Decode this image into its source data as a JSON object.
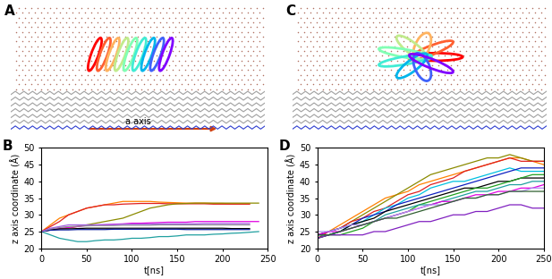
{
  "images": [
    {
      "label": "A",
      "annotation": "a axis"
    },
    {
      "label": "C"
    }
  ],
  "chart_data": [
    {
      "type": "line",
      "title": "B",
      "x_label": "t[ns]",
      "y_label": "z axis coordinate (Å)",
      "x": [
        0,
        10,
        20,
        30,
        40,
        50,
        60,
        70,
        80,
        90,
        100,
        110,
        120,
        130,
        140,
        150,
        160,
        170,
        180,
        190,
        200,
        210,
        220,
        230,
        240,
        250
      ],
      "xlim": [
        0,
        250
      ],
      "xticks": [
        0,
        50,
        100,
        150,
        200,
        250
      ],
      "ylim": [
        20,
        50
      ],
      "yticks": [
        20,
        25,
        30,
        35,
        40,
        45,
        50
      ],
      "grid": false,
      "series": [
        {
          "color": "#ff8000",
          "values": [
            25,
            27,
            29,
            30,
            31,
            32,
            32.5,
            33,
            33.5,
            34,
            34,
            34,
            34,
            33.8,
            33.7,
            33.6,
            33.5,
            33.5,
            33.5,
            33.4,
            33.4,
            33.3,
            33.3,
            33.3,
            null,
            null
          ]
        },
        {
          "color": "#e02020",
          "values": [
            25,
            26.5,
            28,
            30,
            31,
            32,
            32.5,
            33,
            33,
            33.2,
            33.3,
            33.4,
            33.4,
            33.4,
            33.3,
            33.3,
            33.3,
            33.3,
            33.3,
            33.2,
            33.2,
            33.2,
            33.2,
            33.2,
            null,
            null
          ]
        },
        {
          "color": "#8b8b00",
          "values": [
            25,
            25.5,
            25.8,
            26,
            26.5,
            27,
            27.5,
            28,
            28.5,
            29,
            30,
            31,
            32,
            32.5,
            33,
            33.3,
            33.4,
            33.5,
            33.5,
            33.5,
            33.5,
            33.5,
            33.5,
            33.5,
            33.5,
            null
          ]
        },
        {
          "color": "#e000e0",
          "values": [
            25,
            25.5,
            26,
            26.2,
            26.5,
            26.8,
            27,
            27,
            27.2,
            27.3,
            27.5,
            27.5,
            27.6,
            27.7,
            27.8,
            27.8,
            27.8,
            28,
            28,
            28,
            28,
            28,
            28,
            28,
            28,
            null
          ]
        },
        {
          "color": "#20a0a0",
          "values": [
            25,
            24,
            23,
            22.5,
            22,
            22,
            22.3,
            22.5,
            22.5,
            22.7,
            23,
            23,
            23.2,
            23.5,
            23.5,
            23.7,
            24,
            24,
            24,
            24.2,
            24.3,
            24.5,
            24.6,
            24.8,
            25,
            null
          ]
        },
        {
          "color": "#000000",
          "values": [
            25,
            25.5,
            25.8,
            25.8,
            25.9,
            26,
            26,
            26,
            26,
            26,
            26,
            26,
            26,
            26,
            26,
            26,
            26,
            26,
            26,
            26,
            26,
            25.9,
            25.9,
            25.9,
            null,
            null
          ]
        },
        {
          "color": "#1020a0",
          "values": [
            25,
            25.4,
            25.5,
            25.5,
            25.6,
            25.6,
            25.6,
            25.6,
            25.7,
            25.7,
            25.7,
            25.7,
            25.7,
            25.7,
            25.7,
            25.7,
            25.6,
            25.6,
            25.6,
            25.6,
            25.6,
            25.6,
            25.6,
            25.6,
            null,
            null
          ]
        },
        {
          "color": "#909090",
          "values": [
            25,
            25.8,
            26.2,
            26.5,
            26.6,
            26.7,
            26.8,
            26.8,
            26.8,
            26.9,
            26.9,
            26.9,
            26.9,
            27,
            27,
            27,
            27,
            27,
            27,
            27,
            27,
            27,
            27,
            27,
            null,
            null
          ]
        },
        {
          "color": "#a060e0",
          "values": [
            25,
            26,
            26.5,
            27,
            27,
            27,
            27,
            27.1,
            27.1,
            27.2,
            27.2,
            27.2,
            27.2,
            27.3,
            27.3,
            27.3,
            27.3,
            27.3,
            27.4,
            27.4,
            27.4,
            27.4,
            27.4,
            27.4,
            null,
            null
          ]
        }
      ]
    },
    {
      "type": "line",
      "title": "D",
      "x_label": "t[ns]",
      "y_label": "z axis coordinate (Å)",
      "x": [
        0,
        12.5,
        25,
        37.5,
        50,
        62.5,
        75,
        87.5,
        100,
        112.5,
        125,
        137.5,
        150,
        162.5,
        175,
        187.5,
        200,
        212.5,
        225,
        237.5,
        250
      ],
      "xlim": [
        0,
        250
      ],
      "xticks": [
        0,
        50,
        100,
        150,
        200,
        250
      ],
      "ylim": [
        20,
        50
      ],
      "yticks": [
        20,
        25,
        30,
        35,
        40,
        45,
        50
      ],
      "grid": false,
      "series": [
        {
          "color": "#ff8000",
          "values": [
            24,
            25,
            27,
            29,
            31,
            33,
            35,
            36,
            37,
            39,
            40,
            41,
            42,
            43,
            44,
            45,
            46,
            47,
            47,
            46,
            45
          ]
        },
        {
          "color": "#8b8b00",
          "values": [
            24,
            25,
            26,
            28,
            30,
            32,
            34,
            36,
            38,
            40,
            42,
            43,
            44,
            45,
            46,
            47,
            47,
            48,
            47,
            46,
            46
          ]
        },
        {
          "color": "#e02020",
          "values": [
            23,
            25,
            26,
            28,
            29,
            31,
            32,
            34,
            36,
            37,
            39,
            40,
            41,
            43,
            44,
            45,
            46,
            47,
            46,
            46,
            46
          ]
        },
        {
          "color": "#00c0e0",
          "values": [
            24,
            24,
            25,
            27,
            28,
            30,
            32,
            33,
            35,
            36,
            38,
            39,
            40,
            40,
            41,
            42,
            43,
            44,
            43,
            43,
            43
          ]
        },
        {
          "color": "#1020c0",
          "values": [
            24,
            25,
            26,
            27,
            29,
            30,
            31,
            33,
            34,
            35,
            36,
            37,
            38,
            39,
            40,
            41,
            42,
            43,
            44,
            44,
            44
          ]
        },
        {
          "color": "#000000",
          "values": [
            23,
            24,
            25,
            27,
            28,
            29,
            31,
            32,
            33,
            34,
            35,
            36,
            37,
            38,
            38,
            39,
            40,
            40,
            41,
            41,
            41
          ]
        },
        {
          "color": "#20a020",
          "values": [
            23,
            24,
            24,
            25,
            26,
            28,
            29,
            30,
            31,
            33,
            34,
            35,
            36,
            37,
            38,
            38,
            39,
            40,
            41,
            42,
            42
          ]
        },
        {
          "color": "#20a0a0",
          "values": [
            24,
            24,
            25,
            26,
            27,
            28,
            30,
            31,
            32,
            33,
            33,
            34,
            35,
            36,
            37,
            37,
            38,
            39,
            39,
            40,
            40
          ]
        },
        {
          "color": "#e000e0",
          "values": [
            24,
            25,
            25,
            26,
            27,
            28,
            29,
            30,
            31,
            32,
            33,
            34,
            34,
            35,
            36,
            36,
            37,
            37,
            38,
            38,
            39
          ]
        },
        {
          "color": "#b090f0",
          "values": [
            25,
            25,
            26,
            27,
            27,
            28,
            29,
            30,
            31,
            32,
            33,
            33,
            34,
            35,
            35,
            36,
            36,
            37,
            37,
            38,
            38
          ]
        },
        {
          "color": "#8020c0",
          "values": [
            23,
            24,
            24,
            24,
            24,
            25,
            25,
            26,
            27,
            28,
            28,
            29,
            30,
            30,
            31,
            31,
            32,
            33,
            33,
            32,
            32
          ]
        },
        {
          "color": "#306030",
          "values": [
            24,
            24,
            25,
            26,
            27,
            28,
            29,
            29,
            30,
            31,
            32,
            33,
            34,
            35,
            35,
            36,
            36,
            37,
            37,
            37,
            37
          ]
        }
      ]
    }
  ]
}
